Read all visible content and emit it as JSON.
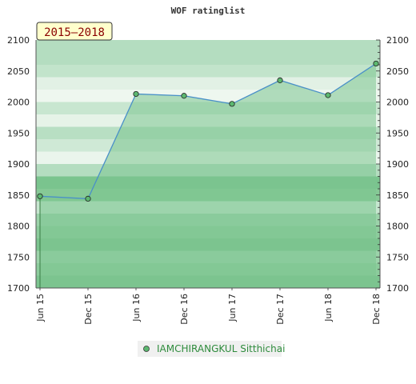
{
  "chart_data": {
    "type": "line",
    "title": "WOF ratinglist",
    "period_label": "2015–2018",
    "x_ticks": [
      "Jun 15",
      "Dec 15",
      "Jun 16",
      "Dec 16",
      "Jun 17",
      "Dec 17",
      "Jun 18",
      "Dec 18"
    ],
    "ylim": [
      1700,
      2100
    ],
    "y_ticks": [
      1700,
      1750,
      1800,
      1850,
      1900,
      1950,
      2000,
      2050,
      2100
    ],
    "series": [
      {
        "name": "IAMCHIRANGKUL Sitthichai",
        "x": [
          "Jun 15",
          "Dec 15",
          "Jun 16",
          "Dec 16",
          "Jun 17",
          "Dec 17",
          "Jun 18",
          "Dec 18"
        ],
        "values": [
          1848,
          1844,
          2013,
          2010,
          1997,
          2035,
          2011,
          2062
        ]
      }
    ],
    "colors": {
      "line": "#4a90c8",
      "fill": "#7cc490",
      "marker": "#5cb870",
      "band_light": "#f2f8f2",
      "band_dark": "#7ac48e"
    }
  }
}
